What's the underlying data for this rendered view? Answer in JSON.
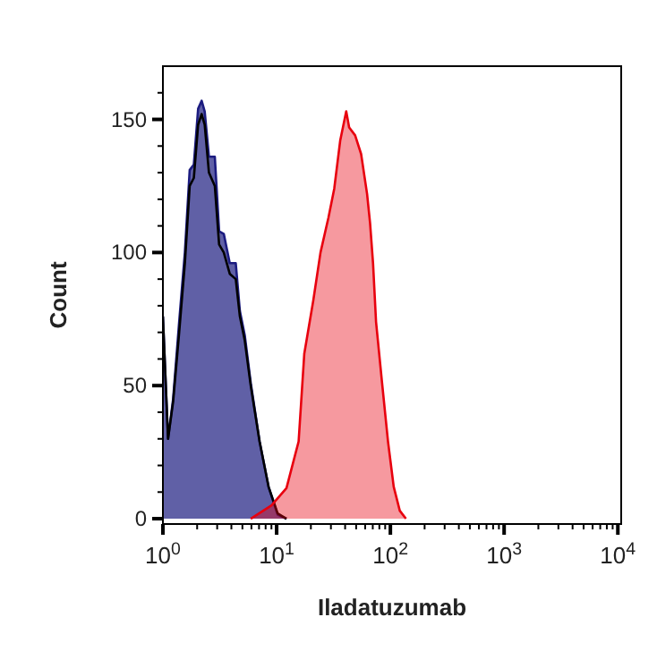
{
  "chart_data": {
    "type": "area",
    "xlabel": "Iladatuzumab",
    "ylabel": "Count",
    "log": "x",
    "xlim": [
      1,
      10700
    ],
    "ylim": [
      -2,
      170
    ],
    "xticks": [
      {
        "value": 1,
        "label": "10$^{0}$"
      },
      {
        "value": 2,
        "label": null
      },
      {
        "value": 3,
        "label": null
      },
      {
        "value": 4,
        "label": null
      },
      {
        "value": 5,
        "label": null
      },
      {
        "value": 6,
        "label": null
      },
      {
        "value": 7,
        "label": null
      },
      {
        "value": 8,
        "label": null
      },
      {
        "value": 9,
        "label": null
      },
      {
        "value": 10,
        "label": "10$^{1}$"
      },
      {
        "value": 20,
        "label": null
      },
      {
        "value": 30,
        "label": null
      },
      {
        "value": 40,
        "label": null
      },
      {
        "value": 50,
        "label": null
      },
      {
        "value": 60,
        "label": null
      },
      {
        "value": 70,
        "label": null
      },
      {
        "value": 80,
        "label": null
      },
      {
        "value": 90,
        "label": null
      },
      {
        "value": 100,
        "label": "10$^{2}$"
      },
      {
        "value": 200,
        "label": null
      },
      {
        "value": 300,
        "label": null
      },
      {
        "value": 400,
        "label": null
      },
      {
        "value": 500,
        "label": null
      },
      {
        "value": 600,
        "label": null
      },
      {
        "value": 700,
        "label": null
      },
      {
        "value": 800,
        "label": null
      },
      {
        "value": 900,
        "label": null
      },
      {
        "value": 1000,
        "label": "10$^{3}$"
      },
      {
        "value": 2000,
        "label": null
      },
      {
        "value": 3000,
        "label": null
      },
      {
        "value": 4000,
        "label": null
      },
      {
        "value": 5000,
        "label": null
      },
      {
        "value": 6000,
        "label": null
      },
      {
        "value": 7000,
        "label": null
      },
      {
        "value": 8000,
        "label": null
      },
      {
        "value": 9000,
        "label": null
      },
      {
        "value": 10000,
        "label": "10$^{4}$"
      }
    ],
    "yticks": [
      0,
      {
        "value": 10,
        "label": null
      },
      {
        "value": 20,
        "label": null
      },
      {
        "value": 30,
        "label": null
      },
      {
        "value": 40,
        "label": null
      },
      50,
      {
        "value": 60,
        "label": null
      },
      {
        "value": 70,
        "label": null
      },
      {
        "value": 80,
        "label": null
      },
      {
        "value": 90,
        "label": null
      },
      100,
      {
        "value": 110,
        "label": null
      },
      {
        "value": 120,
        "label": null
      },
      {
        "value": 130,
        "label": null
      },
      {
        "value": 140,
        "label": null
      },
      150,
      {
        "value": 160,
        "label": null
      }
    ],
    "grid": false,
    "series": [
      {
        "color": "#1c1c80",
        "x": [
          1,
          1.11,
          1.23,
          1.39,
          1.56,
          1.72,
          1.87,
          2.04,
          2.19,
          2.33,
          2.54,
          2.86,
          3.12,
          3.43,
          3.87,
          4.37,
          4.75,
          5.24,
          5.92,
          7.08,
          8.49,
          10.2,
          12.2
        ],
        "values": [
          76,
          30,
          45,
          74,
          100,
          131,
          133,
          154,
          157,
          153,
          136,
          136,
          108,
          107,
          96,
          96,
          78,
          69,
          51,
          29,
          12,
          1.5,
          0
        ]
      },
      {
        "type": "line",
        "color": "#000000",
        "x": [
          1,
          1.11,
          1.23,
          1.39,
          1.56,
          1.72,
          1.87,
          2.04,
          2.19,
          2.33,
          2.54,
          2.86,
          3.12,
          3.43,
          3.87,
          4.37,
          4.75,
          5.24,
          5.92,
          7.08,
          8.49,
          10.2,
          12.2
        ],
        "values": [
          76,
          30,
          44,
          70,
          96,
          125,
          128,
          148,
          152,
          148,
          130,
          125,
          103,
          100,
          92,
          90,
          76,
          67,
          50,
          29,
          12,
          2,
          0
        ]
      },
      {
        "color": "#e8000e",
        "x": [
          5.92,
          9.02,
          12.2,
          15.6,
          17.5,
          21.0,
          24.3,
          28.5,
          32.1,
          36.2,
          40.9,
          43.4,
          49.0,
          55.3,
          62.4,
          66.3,
          70.4,
          74.8,
          84.5,
          95.3,
          107,
          121,
          137
        ],
        "values": [
          0,
          5,
          11.5,
          29,
          62,
          82,
          100,
          113,
          124,
          142,
          153,
          147,
          144,
          137,
          122,
          111,
          96,
          74,
          51,
          29,
          12,
          3,
          0
        ]
      }
    ]
  }
}
